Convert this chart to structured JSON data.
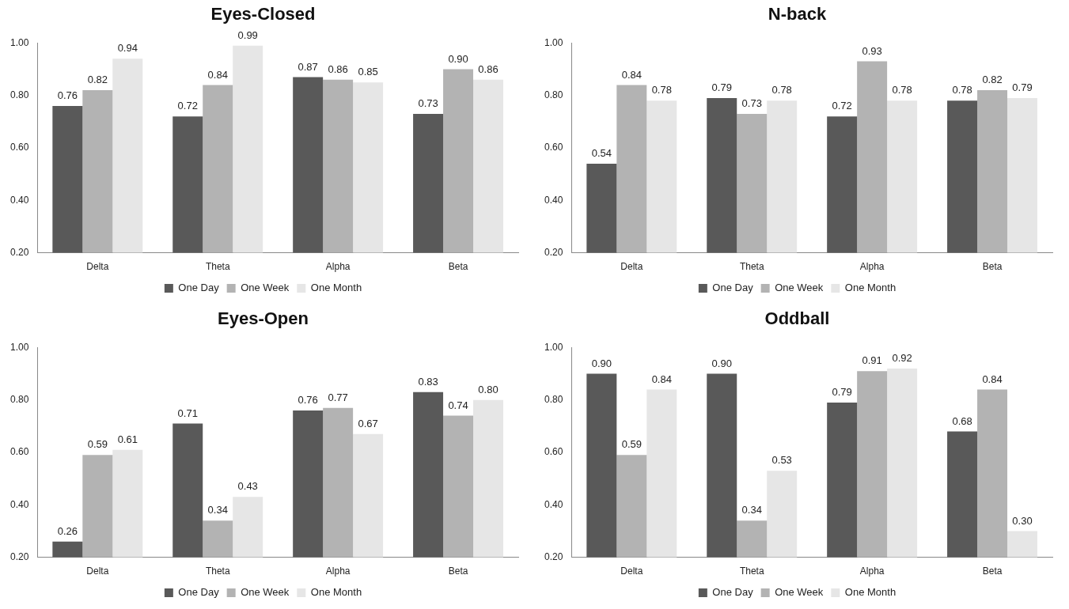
{
  "chart_data": [
    {
      "type": "bar",
      "title": "Eyes-Closed",
      "categories": [
        "Delta",
        "Theta",
        "Alpha",
        "Beta"
      ],
      "ylim": [
        0.2,
        1.0
      ],
      "yticks": [
        {
          "value": 0.2,
          "label": "0.20"
        },
        {
          "value": 0.4,
          "label": "0.40"
        },
        {
          "value": 0.6,
          "label": "0.60"
        },
        {
          "value": 0.8,
          "label": "0.80"
        },
        {
          "value": 1.0,
          "label": "1.00"
        }
      ],
      "grid": false,
      "legend": "bottom",
      "series": [
        {
          "name": "One Day",
          "color": "#595959",
          "values": [
            0.76,
            0.72,
            0.87,
            0.73
          ],
          "value_labels": [
            "0.76",
            "0.72",
            "0.87",
            "0.73"
          ]
        },
        {
          "name": "One Week",
          "color": "#b3b3b3",
          "values": [
            0.82,
            0.84,
            0.86,
            0.9
          ],
          "value_labels": [
            "0.82",
            "0.84",
            "0.86",
            "0.90"
          ]
        },
        {
          "name": "One Month",
          "color": "#e6e6e6",
          "values": [
            0.94,
            0.99,
            0.85,
            0.86
          ],
          "value_labels": [
            "0.94",
            "0.99",
            "0.85",
            "0.86"
          ]
        }
      ]
    },
    {
      "type": "bar",
      "title": "N-back",
      "categories": [
        "Delta",
        "Theta",
        "Alpha",
        "Beta"
      ],
      "ylim": [
        0.2,
        1.0
      ],
      "yticks": [
        {
          "value": 0.2,
          "label": "0.20"
        },
        {
          "value": 0.4,
          "label": "0.40"
        },
        {
          "value": 0.6,
          "label": "0.60"
        },
        {
          "value": 0.8,
          "label": "0.80"
        },
        {
          "value": 1.0,
          "label": "1.00"
        }
      ],
      "grid": false,
      "legend": "bottom",
      "series": [
        {
          "name": "One Day",
          "color": "#595959",
          "values": [
            0.54,
            0.79,
            0.72,
            0.78
          ],
          "value_labels": [
            "0.54",
            "0.79",
            "0.72",
            "0.78"
          ]
        },
        {
          "name": "One Week",
          "color": "#b3b3b3",
          "values": [
            0.84,
            0.73,
            0.93,
            0.82
          ],
          "value_labels": [
            "0.84",
            "0.73",
            "0.93",
            "0.82"
          ]
        },
        {
          "name": "One Month",
          "color": "#e6e6e6",
          "values": [
            0.78,
            0.78,
            0.78,
            0.79
          ],
          "value_labels": [
            "0.78",
            "0.78",
            "0.78",
            "0.79"
          ]
        }
      ]
    },
    {
      "type": "bar",
      "title": "Eyes-Open",
      "categories": [
        "Delta",
        "Theta",
        "Alpha",
        "Beta"
      ],
      "ylim": [
        0.2,
        1.0
      ],
      "yticks": [
        {
          "value": 0.2,
          "label": "0.20"
        },
        {
          "value": 0.4,
          "label": "0.40"
        },
        {
          "value": 0.6,
          "label": "0.60"
        },
        {
          "value": 0.8,
          "label": "0.80"
        },
        {
          "value": 1.0,
          "label": "1.00"
        }
      ],
      "grid": false,
      "legend": "bottom",
      "series": [
        {
          "name": "One Day",
          "color": "#595959",
          "values": [
            0.26,
            0.71,
            0.76,
            0.83
          ],
          "value_labels": [
            "0.26",
            "0.71",
            "0.76",
            "0.83"
          ]
        },
        {
          "name": "One Week",
          "color": "#b3b3b3",
          "values": [
            0.59,
            0.34,
            0.77,
            0.74
          ],
          "value_labels": [
            "0.59",
            "0.34",
            "0.77",
            "0.74"
          ]
        },
        {
          "name": "One Month",
          "color": "#e6e6e6",
          "values": [
            0.61,
            0.43,
            0.67,
            0.8
          ],
          "value_labels": [
            "0.61",
            "0.43",
            "0.67",
            "0.80"
          ]
        }
      ]
    },
    {
      "type": "bar",
      "title": "Oddball",
      "categories": [
        "Delta",
        "Theta",
        "Alpha",
        "Beta"
      ],
      "ylim": [
        0.2,
        1.0
      ],
      "yticks": [
        {
          "value": 0.2,
          "label": "0.20"
        },
        {
          "value": 0.4,
          "label": "0.40"
        },
        {
          "value": 0.6,
          "label": "0.60"
        },
        {
          "value": 0.8,
          "label": "0.80"
        },
        {
          "value": 1.0,
          "label": "1.00"
        }
      ],
      "grid": false,
      "legend": "bottom",
      "series": [
        {
          "name": "One Day",
          "color": "#595959",
          "values": [
            0.9,
            0.9,
            0.79,
            0.68
          ],
          "value_labels": [
            "0.90",
            "0.90",
            "0.79",
            "0.68"
          ]
        },
        {
          "name": "One Week",
          "color": "#b3b3b3",
          "values": [
            0.59,
            0.34,
            0.91,
            0.84
          ],
          "value_labels": [
            "0.59",
            "0.34",
            "0.91",
            "0.84"
          ]
        },
        {
          "name": "One Month",
          "color": "#e6e6e6",
          "values": [
            0.84,
            0.53,
            0.92,
            0.3
          ],
          "value_labels": [
            "0.84",
            "0.53",
            "0.92",
            "0.30"
          ]
        }
      ]
    }
  ]
}
